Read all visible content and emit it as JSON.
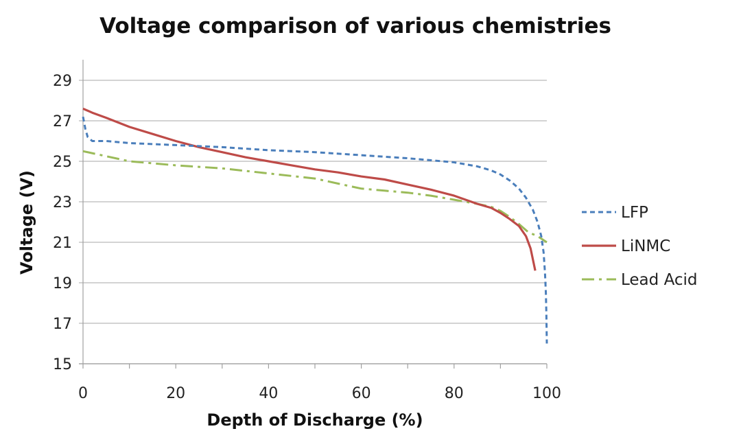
{
  "chart_data": {
    "type": "line",
    "title": "Voltage comparison of various chemistries",
    "xlabel": "Depth of Discharge (%)",
    "ylabel": "Voltage (V)",
    "xlim": [
      0,
      100
    ],
    "ylim": [
      15,
      30
    ],
    "x_ticks": [
      0,
      20,
      40,
      60,
      80,
      100
    ],
    "y_ticks": [
      15,
      17,
      19,
      21,
      23,
      25,
      27,
      29
    ],
    "grid": "horizontal",
    "legend_position": "right",
    "series": [
      {
        "name": "LFP",
        "color": "#4a7ebb",
        "style": "dashed",
        "points": [
          [
            0,
            27.2
          ],
          [
            0.5,
            26.6
          ],
          [
            1,
            26.2
          ],
          [
            2,
            26.0
          ],
          [
            5,
            26.0
          ],
          [
            10,
            25.9
          ],
          [
            20,
            25.8
          ],
          [
            30,
            25.7
          ],
          [
            40,
            25.55
          ],
          [
            50,
            25.45
          ],
          [
            60,
            25.3
          ],
          [
            70,
            25.15
          ],
          [
            75,
            25.05
          ],
          [
            80,
            24.95
          ],
          [
            85,
            24.75
          ],
          [
            88,
            24.55
          ],
          [
            90,
            24.35
          ],
          [
            92,
            24.05
          ],
          [
            94,
            23.65
          ],
          [
            95.5,
            23.2
          ],
          [
            97,
            22.6
          ],
          [
            98,
            22.0
          ],
          [
            98.8,
            21.3
          ],
          [
            99.3,
            20.5
          ],
          [
            99.6,
            19.5
          ],
          [
            99.8,
            18.5
          ],
          [
            99.9,
            17.5
          ],
          [
            100,
            16.0
          ]
        ]
      },
      {
        "name": "LiNMC",
        "color": "#be4b48",
        "style": "solid",
        "points": [
          [
            0,
            27.6
          ],
          [
            2,
            27.4
          ],
          [
            5,
            27.15
          ],
          [
            10,
            26.7
          ],
          [
            15,
            26.35
          ],
          [
            20,
            26.0
          ],
          [
            25,
            25.7
          ],
          [
            30,
            25.45
          ],
          [
            35,
            25.2
          ],
          [
            40,
            25.0
          ],
          [
            45,
            24.8
          ],
          [
            50,
            24.6
          ],
          [
            55,
            24.45
          ],
          [
            60,
            24.25
          ],
          [
            65,
            24.1
          ],
          [
            70,
            23.85
          ],
          [
            75,
            23.6
          ],
          [
            80,
            23.3
          ],
          [
            85,
            22.9
          ],
          [
            88,
            22.7
          ],
          [
            90,
            22.45
          ],
          [
            92,
            22.15
          ],
          [
            94,
            21.8
          ],
          [
            95.5,
            21.3
          ],
          [
            96.5,
            20.7
          ],
          [
            97.5,
            19.6
          ]
        ]
      },
      {
        "name": "Lead Acid",
        "color": "#9bbb59",
        "style": "dash-dot",
        "points": [
          [
            0,
            25.5
          ],
          [
            5,
            25.25
          ],
          [
            10,
            25.0
          ],
          [
            20,
            24.8
          ],
          [
            30,
            24.65
          ],
          [
            40,
            24.4
          ],
          [
            50,
            24.15
          ],
          [
            55,
            23.9
          ],
          [
            60,
            23.65
          ],
          [
            65,
            23.55
          ],
          [
            70,
            23.45
          ],
          [
            75,
            23.3
          ],
          [
            80,
            23.1
          ],
          [
            85,
            22.9
          ],
          [
            88,
            22.75
          ],
          [
            90,
            22.55
          ],
          [
            92,
            22.25
          ],
          [
            94,
            21.9
          ],
          [
            96,
            21.5
          ],
          [
            98,
            21.3
          ],
          [
            100,
            21.0
          ]
        ]
      }
    ]
  }
}
